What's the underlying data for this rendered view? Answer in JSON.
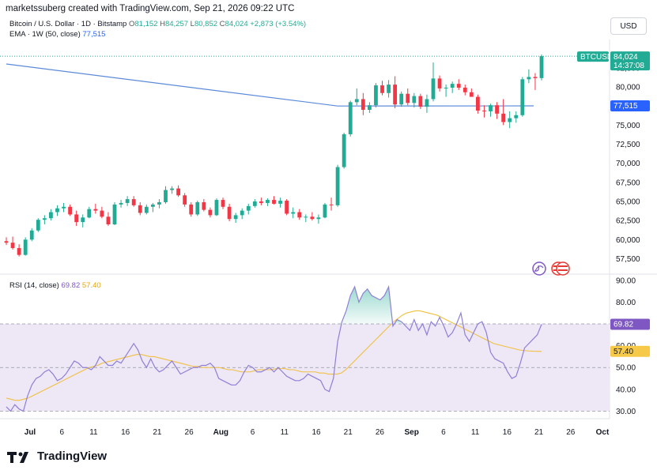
{
  "header": {
    "attribution": "marketssuberg created with TradingView.com, Sep 21, 2026 09:22 UTC"
  },
  "currency_button": "USD",
  "legend": {
    "symbol": "Bitcoin / U.S. Dollar · 1D · Bitstamp",
    "o_label": "O",
    "o": "81,152",
    "h_label": "H",
    "h": "84,257",
    "l_label": "L",
    "l": "80,852",
    "c_label": "C",
    "c": "84,024",
    "change": "+2,873 (+3.54%)",
    "ema_label": "EMA · 1W (50, close)",
    "ema_value": "77,515",
    "rsi_label": "RSI (14, close)",
    "rsi_value": "69.82",
    "rsi_ma_value": "57.40"
  },
  "badges": {
    "symbol": "BTCUSD",
    "price": "84,024",
    "countdown": "14:37:08",
    "ema": "77,515",
    "rsi": "69.82",
    "rsi_ma": "57.40"
  },
  "colors": {
    "up": "#22ab94",
    "down": "#f23645",
    "ema": "#5b8ad8",
    "rsi": "#8f7fd6",
    "rsi_ma": "#f0c040",
    "band": "#ede7f6"
  },
  "brand": "TradingView",
  "chart_data": [
    {
      "type": "candlestick",
      "ylim": [
        56000,
        86000
      ],
      "y_ticks": [
        "57,500",
        "60,000",
        "62,500",
        "65,000",
        "67,500",
        "70,000",
        "72,500",
        "75,000",
        "77,500",
        "80,000",
        "82,500"
      ],
      "x_ticks": [
        "Jul",
        "6",
        "11",
        "16",
        "21",
        "26",
        "Aug",
        "6",
        "11",
        "16",
        "21",
        "26",
        "Sep",
        "6",
        "11",
        "16",
        "21",
        "26",
        "Oct"
      ],
      "candles": [
        [
          59800,
          60300,
          59300,
          59600
        ],
        [
          59600,
          60400,
          58700,
          58900
        ],
        [
          58900,
          59400,
          57800,
          58000
        ],
        [
          58000,
          60300,
          57900,
          60000
        ],
        [
          60000,
          61500,
          59800,
          61200
        ],
        [
          61200,
          62800,
          61000,
          62600
        ],
        [
          62600,
          63200,
          62000,
          62800
        ],
        [
          62800,
          64000,
          62500,
          63600
        ],
        [
          63600,
          64500,
          63100,
          64100
        ],
        [
          64100,
          64800,
          63600,
          64300
        ],
        [
          64300,
          64600,
          63100,
          63300
        ],
        [
          63300,
          63800,
          61800,
          62300
        ],
        [
          62300,
          63300,
          61600,
          62900
        ],
        [
          62900,
          64300,
          62800,
          64000
        ],
        [
          64000,
          64700,
          63400,
          63800
        ],
        [
          63800,
          64300,
          62800,
          63000
        ],
        [
          63000,
          63600,
          61800,
          62000
        ],
        [
          62000,
          64900,
          61900,
          64600
        ],
        [
          64600,
          65200,
          64200,
          64800
        ],
        [
          64800,
          65700,
          64400,
          65300
        ],
        [
          65300,
          65700,
          64300,
          64500
        ],
        [
          64500,
          64900,
          63200,
          63500
        ],
        [
          63500,
          64600,
          63300,
          64300
        ],
        [
          64300,
          64800,
          63600,
          64600
        ],
        [
          64600,
          65300,
          64100,
          64900
        ],
        [
          64900,
          67000,
          64700,
          66500
        ],
        [
          66500,
          67000,
          66000,
          66700
        ],
        [
          66700,
          67100,
          65600,
          65800
        ],
        [
          65800,
          66100,
          64300,
          64600
        ],
        [
          64600,
          64900,
          63000,
          63300
        ],
        [
          63300,
          65100,
          63100,
          64900
        ],
        [
          64900,
          65300,
          63700,
          63900
        ],
        [
          63900,
          64200,
          62900,
          63200
        ],
        [
          63200,
          65400,
          63100,
          65200
        ],
        [
          65200,
          65500,
          64000,
          64300
        ],
        [
          64300,
          64700,
          62400,
          62700
        ],
        [
          62700,
          63500,
          62200,
          63200
        ],
        [
          63200,
          64100,
          62700,
          63800
        ],
        [
          63800,
          64700,
          63300,
          64400
        ],
        [
          64400,
          65300,
          64200,
          65000
        ],
        [
          65000,
          65500,
          64500,
          64800
        ],
        [
          64800,
          65400,
          64400,
          65200
        ],
        [
          65200,
          65700,
          64600,
          64700
        ],
        [
          64700,
          65500,
          64200,
          65100
        ],
        [
          65100,
          65300,
          63200,
          63400
        ],
        [
          63400,
          64200,
          62800,
          63600
        ],
        [
          63600,
          64000,
          62600,
          62900
        ],
        [
          62900,
          63300,
          62300,
          63000
        ],
        [
          63000,
          63600,
          62500,
          62700
        ],
        [
          62700,
          63300,
          62100,
          62900
        ],
        [
          62900,
          64800,
          62800,
          64600
        ],
        [
          64600,
          65500,
          63800,
          64500
        ],
        [
          64500,
          69800,
          64300,
          69500
        ],
        [
          69500,
          74000,
          69300,
          73800
        ],
        [
          73800,
          78200,
          73500,
          78000
        ],
        [
          78000,
          79800,
          77600,
          78400
        ],
        [
          78400,
          79200,
          76300,
          77000
        ],
        [
          77000,
          78000,
          76600,
          77600
        ],
        [
          77600,
          80500,
          77300,
          80200
        ],
        [
          80200,
          80800,
          78900,
          79200
        ],
        [
          79200,
          80900,
          78600,
          80300
        ],
        [
          80300,
          81400,
          77200,
          77700
        ],
        [
          77700,
          79400,
          77400,
          79100
        ],
        [
          79100,
          79800,
          77600,
          77900
        ],
        [
          77900,
          79200,
          77300,
          78800
        ],
        [
          78800,
          79100,
          77100,
          77400
        ],
        [
          77400,
          79000,
          76600,
          78400
        ],
        [
          78400,
          83200,
          78100,
          81100
        ],
        [
          81100,
          81500,
          79400,
          79800
        ],
        [
          79800,
          80300,
          78700,
          79900
        ],
        [
          79900,
          80700,
          79200,
          80400
        ],
        [
          80400,
          81000,
          79600,
          79900
        ],
        [
          79900,
          80300,
          78900,
          79300
        ],
        [
          79300,
          79800,
          78800,
          78700
        ],
        [
          78700,
          79000,
          76500,
          76900
        ],
        [
          76900,
          77600,
          76000,
          76800
        ],
        [
          76800,
          77800,
          76100,
          77600
        ],
        [
          77600,
          78000,
          75800,
          76500
        ],
        [
          76500,
          78400,
          75000,
          75400
        ],
        [
          75400,
          76800,
          74600,
          75900
        ],
        [
          75900,
          76800,
          75300,
          76300
        ],
        [
          76300,
          81300,
          76100,
          81000
        ],
        [
          81000,
          82300,
          80500,
          81300
        ],
        [
          81300,
          81800,
          79600,
          81152
        ],
        [
          81152,
          84257,
          80852,
          84024
        ]
      ],
      "ema": {
        "start": 83000,
        "flat": 77500,
        "end": 77515
      }
    },
    {
      "type": "line",
      "ylim": [
        28,
        91
      ],
      "y_ticks": [
        "30.00",
        "40.00",
        "50.00",
        "60.00",
        "70.00",
        "80.00",
        "90.00"
      ],
      "levels": [
        30,
        50,
        70
      ],
      "series": [
        {
          "name": "RSI",
          "values": [
            32,
            30,
            33,
            31,
            30,
            37,
            42,
            45,
            46,
            48,
            49,
            47,
            44,
            45,
            47,
            50,
            53,
            52,
            50,
            50,
            49,
            51,
            55,
            53,
            51,
            51,
            53,
            52,
            55,
            58,
            61,
            58,
            53,
            50,
            54,
            50,
            48,
            49,
            51,
            53,
            50,
            47,
            48,
            49,
            50,
            50,
            51,
            51,
            52,
            50,
            45,
            44,
            43,
            42,
            42,
            44,
            48,
            51,
            50,
            48,
            48,
            49,
            50,
            48,
            50,
            48,
            46,
            45,
            44,
            44,
            45,
            47,
            46,
            45,
            44,
            40,
            39,
            45,
            62,
            71,
            76,
            83,
            87,
            80,
            84,
            86,
            83,
            82,
            81,
            83,
            87,
            69,
            72,
            71,
            69,
            67,
            72,
            67,
            70,
            65,
            71,
            69,
            73,
            69,
            64,
            66,
            70,
            75,
            65,
            62,
            66,
            70,
            71,
            66,
            57,
            54,
            53,
            52,
            48,
            45,
            46,
            52,
            59,
            61,
            63,
            65,
            69.82
          ]
        },
        {
          "name": "RSI MA",
          "values": [
            36,
            35.5,
            35,
            35,
            35.5,
            36,
            37,
            38,
            39,
            40,
            41,
            42,
            43,
            44,
            45,
            46,
            47,
            48,
            49,
            50,
            50.5,
            51,
            52,
            52.5,
            53,
            53.5,
            54,
            54.5,
            55,
            55.5,
            56,
            56,
            55.5,
            55,
            55,
            54.5,
            54,
            53.5,
            53,
            52.5,
            52,
            51.5,
            51,
            50.5,
            50.5,
            50,
            50,
            50,
            50,
            50,
            49.5,
            49,
            49,
            48.5,
            48,
            48,
            48,
            48.5,
            49,
            49,
            49,
            49,
            49.5,
            49.5,
            49.5,
            49,
            49,
            48.5,
            48,
            48,
            48,
            48,
            47.5,
            47.5,
            47,
            47,
            47,
            47.5,
            49,
            51,
            53,
            55,
            57,
            59,
            61,
            63,
            65,
            67,
            69,
            71,
            72.5,
            74,
            75,
            75.5,
            76,
            76,
            75.5,
            75,
            74.5,
            74,
            73,
            72,
            71,
            70,
            69,
            68,
            67,
            66,
            65,
            64,
            63,
            62,
            61,
            60.5,
            60,
            59.5,
            59,
            58.5,
            58,
            57.8,
            57.6,
            57.5,
            57.45,
            57.4
          ]
        }
      ]
    }
  ]
}
